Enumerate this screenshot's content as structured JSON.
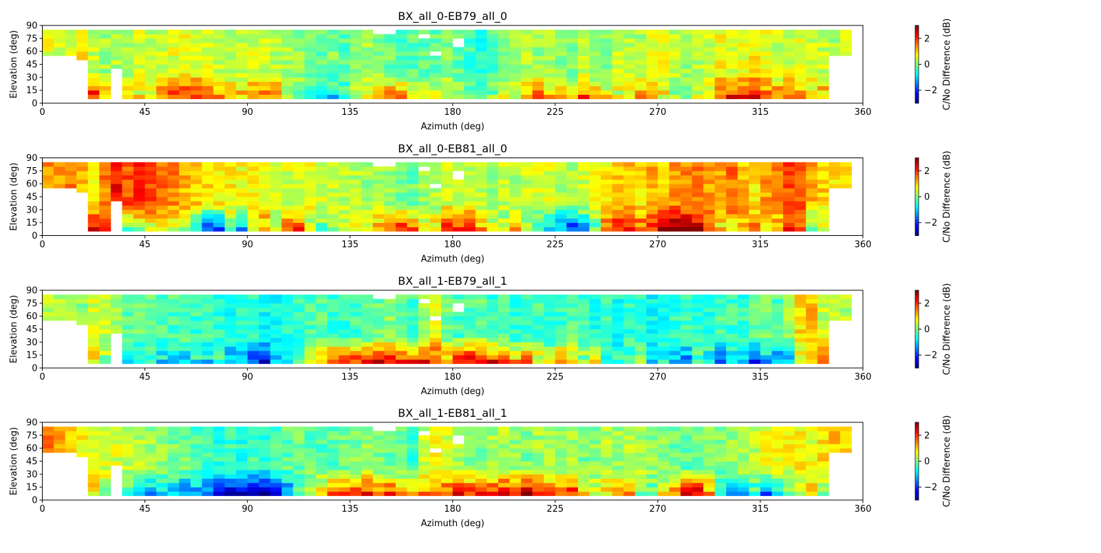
{
  "chart_data": [
    {
      "type": "heatmap",
      "title": "BX_all_0-EB79_all_0",
      "xlabel": "Azimuth (deg)",
      "ylabel": "Elevation (deg)",
      "xlim": [
        0,
        360
      ],
      "ylim": [
        0,
        90
      ],
      "xticks": [
        0,
        45,
        90,
        135,
        180,
        225,
        270,
        315,
        360
      ],
      "yticks": [
        0,
        15,
        30,
        45,
        60,
        75,
        90
      ],
      "colorbar": {
        "label": "C/No Difference (dB)",
        "ticks": [
          -2,
          0,
          2
        ],
        "range": [
          -3,
          3
        ],
        "colormap": "jet"
      },
      "grid": false,
      "cell_size_deg": {
        "azimuth": 5,
        "elevation": 5
      },
      "profile": {
        "low_bias": [
          1.8,
          1.6,
          2.0,
          1.7,
          2.2,
          1.2,
          0.9,
          1.3,
          0.8,
          0.9,
          1.5,
          1.8,
          1.9,
          2.0,
          1.6,
          1.4,
          1.2,
          1.1,
          1.3,
          1.5,
          1.6,
          0.5,
          0.2,
          -0.6,
          -1.5,
          -1.0,
          -0.5,
          0.0,
          0.6,
          1.2,
          1.5,
          1.4,
          0.5,
          0.2,
          0.5,
          0.8,
          0.5,
          0.2,
          0.3,
          0.1,
          0.4,
          0.5,
          0.9,
          1.6,
          1.2,
          1.1,
          0.6,
          1.8,
          1.0,
          0.8,
          0.6,
          0.7,
          1.2,
          1.6,
          0.7,
          0.3,
          0.1,
          0.4,
          0.9,
          1.6,
          2.1,
          2.2,
          2.2,
          1.6,
          1.5,
          1.8,
          1.2,
          1.0,
          1.2,
          1.3,
          1.5,
          1.3
        ],
        "high_bias": [
          0.6,
          0.5,
          0.4,
          0.8,
          0.4,
          0.2,
          0.3,
          0.2,
          0.5,
          0.4,
          0.5,
          0.6,
          0.7,
          0.6,
          0.5,
          0.4,
          0.3,
          0.4,
          0.5,
          0.4,
          0.3,
          0.2,
          0.1,
          0.0,
          -0.1,
          0.0,
          -0.2,
          0.1,
          0.2,
          0.0,
          -0.1,
          -0.3,
          -0.2,
          -0.2,
          -0.1,
          0.0,
          -0.2,
          -0.4,
          -0.5,
          -0.3,
          -0.1,
          0.2,
          0.3,
          0.1,
          0.2,
          0.1,
          0.0,
          0.3,
          0.2,
          0.1,
          0.4,
          0.3,
          0.2,
          0.5,
          0.6,
          0.4,
          0.2,
          0.3,
          0.5,
          0.7,
          0.5,
          0.6,
          0.8,
          0.6,
          0.4,
          0.5,
          0.6,
          0.5,
          0.4,
          0.2,
          0.4,
          0.5
        ]
      }
    },
    {
      "type": "heatmap",
      "title": "BX_all_0-EB81_all_0",
      "xlabel": "Azimuth (deg)",
      "ylabel": "Elevation (deg)",
      "xlim": [
        0,
        360
      ],
      "ylim": [
        0,
        90
      ],
      "xticks": [
        0,
        45,
        90,
        135,
        180,
        225,
        270,
        315,
        360
      ],
      "yticks": [
        0,
        15,
        30,
        45,
        60,
        75,
        90
      ],
      "colorbar": {
        "label": "C/No Difference (dB)",
        "ticks": [
          -2,
          0,
          2
        ],
        "range": [
          -3,
          3
        ],
        "colormap": "jet"
      },
      "grid": false,
      "cell_size_deg": {
        "azimuth": 5,
        "elevation": 5
      },
      "profile": {
        "low_bias": [
          1.6,
          1.8,
          1.7,
          2.0,
          2.4,
          1.9,
          1.3,
          -0.4,
          -0.2,
          0.4,
          0.9,
          0.3,
          0.1,
          -0.9,
          -2.1,
          -1.9,
          0.0,
          -1.2,
          0.9,
          1.4,
          0.3,
          1.6,
          1.9,
          0.5,
          -0.1,
          0.4,
          0.8,
          1.1,
          0.2,
          1.2,
          1.5,
          2.2,
          1.6,
          0.8,
          0.8,
          2.4,
          1.8,
          2.5,
          1.2,
          0.6,
          0.2,
          1.4,
          0.2,
          -0.8,
          -1.2,
          -1.5,
          -2.0,
          -1.3,
          -0.2,
          1.8,
          2.1,
          2.3,
          1.7,
          2.0,
          2.8,
          3.0,
          2.9,
          2.6,
          2.1,
          0.9,
          0.8,
          1.2,
          1.4,
          0.8,
          1.0,
          2.1,
          1.5,
          -0.4,
          0.2,
          0.7,
          1.0,
          0.5
        ],
        "high_bias": [
          1.4,
          1.3,
          1.5,
          1.2,
          0.9,
          1.5,
          2.2,
          1.8,
          2.0,
          1.9,
          1.7,
          1.5,
          1.2,
          1.0,
          0.9,
          0.8,
          0.8,
          0.7,
          0.7,
          0.7,
          0.6,
          0.5,
          0.5,
          0.6,
          0.5,
          0.4,
          0.3,
          0.3,
          0.2,
          0.3,
          0.2,
          0.0,
          -0.1,
          0.2,
          0.3,
          0.5,
          0.4,
          0.4,
          0.3,
          0.2,
          0.4,
          0.3,
          0.4,
          0.6,
          0.5,
          0.3,
          0.2,
          0.5,
          0.6,
          0.8,
          1.0,
          1.1,
          0.9,
          1.2,
          1.1,
          1.3,
          1.4,
          1.5,
          1.3,
          1.2,
          1.6,
          1.1,
          0.9,
          1.3,
          1.5,
          1.8,
          1.7,
          1.2,
          1.0,
          0.9,
          1.1,
          1.0
        ]
      }
    },
    {
      "type": "heatmap",
      "title": "BX_all_1-EB79_all_1",
      "xlabel": "Azimuth (deg)",
      "ylabel": "Elevation (deg)",
      "xlim": [
        0,
        360
      ],
      "ylim": [
        0,
        90
      ],
      "xticks": [
        0,
        45,
        90,
        135,
        180,
        225,
        270,
        315,
        360
      ],
      "yticks": [
        0,
        15,
        30,
        45,
        60,
        75,
        90
      ],
      "colorbar": {
        "label": "C/No Difference (dB)",
        "ticks": [
          -2,
          0,
          2
        ],
        "range": [
          -3,
          3
        ],
        "colormap": "jet"
      },
      "grid": false,
      "cell_size_deg": {
        "azimuth": 5,
        "elevation": 5
      },
      "profile": {
        "low_bias": [
          0.2,
          0.1,
          0.0,
          -1.6,
          1.0,
          0.2,
          -0.9,
          -1.0,
          -1.1,
          -0.8,
          -0.9,
          -1.0,
          -1.2,
          -0.6,
          -0.9,
          -0.6,
          -1.3,
          -1.0,
          -2.0,
          -2.2,
          -1.2,
          -0.8,
          -0.6,
          0.5,
          1.1,
          1.8,
          2.2,
          2.0,
          1.9,
          2.3,
          2.1,
          1.8,
          2.0,
          2.2,
          2.1,
          1.3,
          2.2,
          2.5,
          2.3,
          2.2,
          1.5,
          1.2,
          2.0,
          0.8,
          0.6,
          1.5,
          0.9,
          0.2,
          0.7,
          -0.4,
          -0.6,
          -0.2,
          0.1,
          -0.9,
          -0.5,
          -1.3,
          -1.5,
          -0.3,
          -0.6,
          -1.6,
          -0.8,
          -1.2,
          -1.9,
          -1.1,
          -1.4,
          -1.0,
          0.4,
          0.6,
          2.1,
          0.5,
          0.8,
          0.3
        ],
        "high_bias": [
          0.4,
          0.3,
          0.2,
          0.1,
          0.5,
          0.4,
          0.1,
          -0.2,
          -0.1,
          0.0,
          -0.2,
          -0.3,
          -0.2,
          -0.4,
          -0.3,
          -0.5,
          -0.6,
          -0.4,
          -0.5,
          -0.7,
          -0.6,
          -0.5,
          -0.4,
          -0.3,
          -0.2,
          -0.4,
          -0.5,
          -0.3,
          -0.2,
          -0.1,
          0.1,
          -0.2,
          -0.4,
          0.2,
          0.6,
          -0.1,
          -0.3,
          -0.2,
          -0.2,
          -0.4,
          -0.3,
          -0.5,
          -0.4,
          -0.3,
          -0.6,
          -0.4,
          -0.2,
          -0.3,
          -0.5,
          -0.4,
          -0.6,
          -0.5,
          -0.4,
          -0.7,
          -0.6,
          -0.5,
          -0.4,
          -0.6,
          -0.5,
          -0.3,
          -0.4,
          -0.5,
          -0.2,
          -0.1,
          -0.3,
          0.2,
          0.9,
          1.1,
          0.4,
          0.5,
          0.3,
          0.2
        ]
      }
    },
    {
      "type": "heatmap",
      "title": "BX_all_1-EB81_all_1",
      "xlabel": "Azimuth (deg)",
      "ylabel": "Elevation (deg)",
      "xlim": [
        0,
        360
      ],
      "ylim": [
        0,
        90
      ],
      "xticks": [
        0,
        45,
        90,
        135,
        180,
        225,
        270,
        315,
        360
      ],
      "yticks": [
        0,
        15,
        30,
        45,
        60,
        75,
        90
      ],
      "colorbar": {
        "label": "C/No Difference (dB)",
        "ticks": [
          -2,
          0,
          2
        ],
        "range": [
          -3,
          3
        ],
        "colormap": "jet"
      },
      "grid": false,
      "cell_size_deg": {
        "azimuth": 5,
        "elevation": 5
      },
      "profile": {
        "low_bias": [
          0.8,
          0.6,
          1.3,
          2.0,
          1.0,
          0.3,
          -0.4,
          -0.6,
          -0.8,
          -1.2,
          -1.0,
          -0.9,
          -1.4,
          -1.2,
          -1.6,
          -2.2,
          -2.5,
          -2.3,
          -2.6,
          -2.8,
          -2.0,
          -1.6,
          -0.5,
          0.6,
          1.2,
          1.8,
          1.6,
          2.0,
          2.1,
          1.7,
          1.9,
          1.1,
          0.8,
          1.5,
          1.7,
          1.8,
          2.4,
          2.0,
          2.6,
          1.9,
          2.2,
          2.3,
          2.9,
          2.3,
          1.5,
          1.6,
          2.0,
          1.1,
          0.6,
          0.9,
          1.4,
          1.3,
          0.2,
          -0.2,
          0.8,
          1.4,
          3.0,
          2.5,
          1.2,
          -1.0,
          -1.5,
          -0.9,
          -0.6,
          -1.8,
          -1.2,
          -0.3,
          0.4,
          0.9,
          0.2,
          1.1,
          1.0,
          0.4
        ],
        "high_bias": [
          1.6,
          1.2,
          0.9,
          0.8,
          0.6,
          0.6,
          0.5,
          0.4,
          0.3,
          0.2,
          0.1,
          0.0,
          -0.1,
          -0.3,
          -0.4,
          -0.5,
          -0.4,
          -0.6,
          -0.4,
          -0.5,
          -0.3,
          -0.2,
          -0.1,
          -0.2,
          -0.3,
          -0.2,
          -0.1,
          0.0,
          0.1,
          0.0,
          -0.1,
          -0.2,
          -0.4,
          0.4,
          0.8,
          0.5,
          0.2,
          0.1,
          0.0,
          0.2,
          0.3,
          0.1,
          0.0,
          0.2,
          0.3,
          0.1,
          0.2,
          0.0,
          0.1,
          0.3,
          0.2,
          0.4,
          0.3,
          0.1,
          0.0,
          -0.1,
          -0.2,
          0.0,
          0.1,
          0.0,
          0.2,
          0.3,
          0.4,
          0.6,
          0.8,
          0.7,
          0.8,
          0.6,
          0.9,
          1.1,
          0.9,
          0.7
        ]
      }
    }
  ]
}
